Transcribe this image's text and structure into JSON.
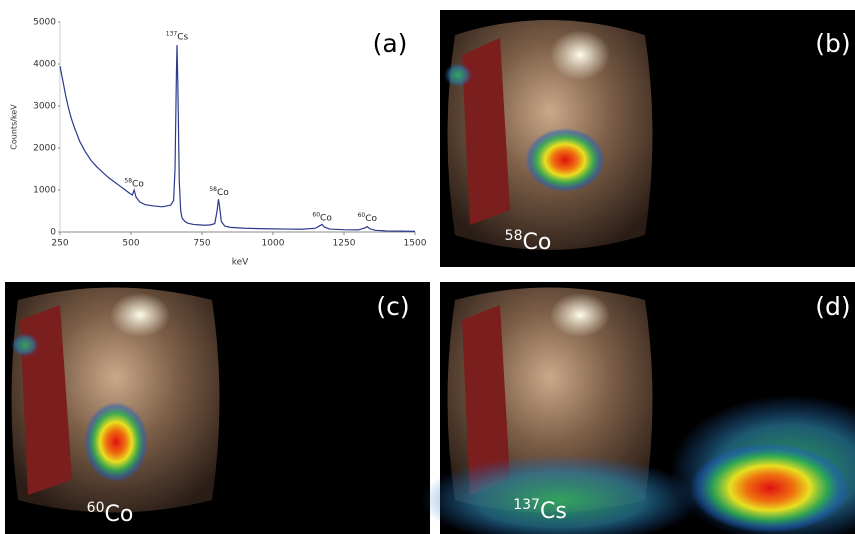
{
  "chart_data": {
    "type": "line",
    "label": "(a)",
    "x_label": "keV",
    "y_label": "Counts/keV",
    "x": [
      250,
      260,
      270,
      280,
      290,
      300,
      320,
      340,
      360,
      380,
      400,
      420,
      440,
      460,
      480,
      495,
      505,
      511,
      518,
      530,
      550,
      580,
      610,
      640,
      650,
      655,
      660,
      662,
      665,
      670,
      675,
      680,
      690,
      700,
      720,
      740,
      760,
      780,
      795,
      803,
      808,
      812,
      818,
      830,
      850,
      900,
      950,
      1000,
      1050,
      1100,
      1150,
      1165,
      1173,
      1180,
      1200,
      1250,
      1300,
      1325,
      1332,
      1340,
      1360,
      1400,
      1450,
      1500
    ],
    "series": [
      {
        "color": "#2b3a8c",
        "values": [
          3950,
          3600,
          3250,
          2950,
          2700,
          2500,
          2150,
          1900,
          1700,
          1550,
          1420,
          1300,
          1200,
          1100,
          1000,
          920,
          880,
          1000,
          830,
          720,
          650,
          620,
          600,
          640,
          750,
          1500,
          3800,
          4450,
          3500,
          1200,
          500,
          330,
          250,
          210,
          180,
          170,
          160,
          170,
          200,
          500,
          780,
          600,
          250,
          140,
          110,
          90,
          80,
          75,
          70,
          65,
          90,
          150,
          180,
          120,
          70,
          55,
          50,
          100,
          130,
          80,
          40,
          25,
          20,
          15
        ]
      }
    ],
    "xlim": [
      250,
      1500
    ],
    "xticks": [
      250,
      500,
      750,
      1000,
      1250,
      1500
    ],
    "ylim": [
      0,
      5000
    ],
    "yticks": [
      0,
      1000,
      2000,
      3000,
      4000,
      5000
    ],
    "annotations": [
      {
        "x": 662,
        "y": 4650,
        "mass": "137",
        "symbol": "Cs"
      },
      {
        "x": 511,
        "y": 1150,
        "mass": "58",
        "symbol": "Co"
      },
      {
        "x": 810,
        "y": 950,
        "mass": "58",
        "symbol": "Co"
      },
      {
        "x": 1173,
        "y": 350,
        "mass": "60",
        "symbol": "Co"
      },
      {
        "x": 1332,
        "y": 330,
        "mass": "60",
        "symbol": "Co"
      }
    ]
  },
  "panels": [
    {
      "label": "(b)",
      "mass": "58",
      "symbol": "Co"
    },
    {
      "label": "(c)",
      "mass": "60",
      "symbol": "Co"
    },
    {
      "label": "(d)",
      "mass": "137",
      "symbol": "Cs"
    }
  ]
}
